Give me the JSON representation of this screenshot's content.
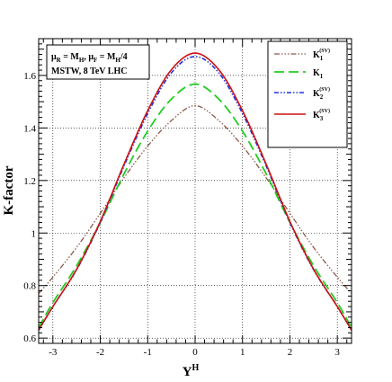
{
  "chart_data": {
    "type": "line",
    "xlabel": "Y",
    "xlabel_sup": "H",
    "ylabel": "K-factor",
    "xlim": [
      -3.3,
      3.3
    ],
    "ylim": [
      0.58,
      1.74
    ],
    "xticks": [
      -3,
      -2,
      -1,
      0,
      1,
      2,
      3
    ],
    "yticks": [
      0.6,
      0.8,
      1,
      1.2,
      1.4,
      1.6
    ],
    "ytick_labels": [
      "0.6",
      "0.8",
      "1",
      "1.2",
      "1.4",
      "1.6"
    ],
    "grid": true,
    "legend_position": "top-right",
    "info_box": {
      "line1_mu_r": "μ",
      "line1_sub_r": "R",
      "line1_eq_r": " = M",
      "line1_sub_h1": "H",
      "line1_sep": ",  μ",
      "line1_sub_f": "F",
      "line1_eq_f": " = M",
      "line1_sub_h2": "H",
      "line1_tail": "/4",
      "line2": "MSTW, 8 TeV LHC"
    },
    "series": [
      {
        "name": "K",
        "name_sub": "1",
        "name_sup": "(SV)",
        "color": "#8b5a4a",
        "dash": "6,2,1.5,2,1.5,2,1.5,2",
        "width": 1.3,
        "x": [
          -3.3,
          -3.0,
          -2.5,
          -2.0,
          -1.5,
          -1.0,
          -0.5,
          0.0,
          0.5,
          1.0,
          1.5,
          2.0,
          2.5,
          3.0,
          3.3
        ],
        "y": [
          0.77,
          0.832,
          0.945,
          1.075,
          1.21,
          1.331,
          1.428,
          1.485,
          1.428,
          1.331,
          1.21,
          1.075,
          0.945,
          0.832,
          0.77
        ]
      },
      {
        "name": "K",
        "name_sub": "1",
        "name_sup": "",
        "color": "#22cc22",
        "dash": "11,5",
        "width": 1.8,
        "x": [
          -3.3,
          -3.0,
          -2.5,
          -2.0,
          -1.5,
          -1.0,
          -0.5,
          0.0,
          0.5,
          1.0,
          1.5,
          2.0,
          2.5,
          3.0,
          3.3
        ],
        "y": [
          0.64,
          0.735,
          0.875,
          1.04,
          1.225,
          1.388,
          1.51,
          1.567,
          1.51,
          1.388,
          1.225,
          1.04,
          0.875,
          0.735,
          0.64
        ]
      },
      {
        "name": "K",
        "name_sub": "2",
        "name_sup": "(SV)",
        "color": "#2233dd",
        "dash": "5,2,1.5,2,1.5,2",
        "width": 1.6,
        "x": [
          -3.3,
          -3.0,
          -2.5,
          -2.0,
          -1.5,
          -1.0,
          -0.5,
          0.0,
          0.5,
          1.0,
          1.5,
          2.0,
          2.5,
          3.0,
          3.3
        ],
        "y": [
          0.63,
          0.72,
          0.86,
          1.04,
          1.255,
          1.455,
          1.61,
          1.672,
          1.61,
          1.455,
          1.255,
          1.04,
          0.86,
          0.72,
          0.63
        ]
      },
      {
        "name": "K",
        "name_sub": "3",
        "name_sup": "(SV)",
        "color": "#cc1111",
        "dash": "",
        "width": 1.6,
        "x": [
          -3.3,
          -3.0,
          -2.5,
          -2.0,
          -1.5,
          -1.0,
          -0.5,
          0.0,
          0.5,
          1.0,
          1.5,
          2.0,
          2.5,
          3.0,
          3.3
        ],
        "y": [
          0.63,
          0.72,
          0.862,
          1.044,
          1.262,
          1.466,
          1.622,
          1.685,
          1.622,
          1.466,
          1.262,
          1.044,
          0.862,
          0.72,
          0.63
        ]
      }
    ]
  }
}
